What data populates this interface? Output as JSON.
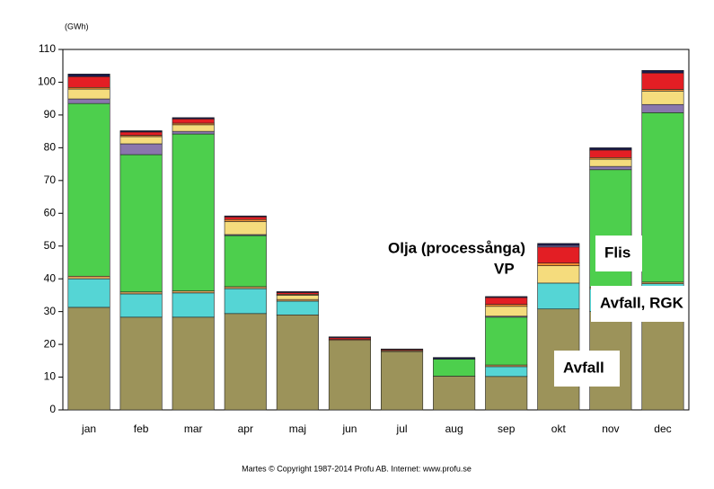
{
  "chart_data": {
    "type": "stacked_bar",
    "y_label": "(GWh)",
    "footer": "Martes © Copyright 1987-2014 Profu AB. Internet: www.profu.se",
    "categories": [
      "jan",
      "feb",
      "mar",
      "apr",
      "maj",
      "jun",
      "jul",
      "aug",
      "sep",
      "okt",
      "nov",
      "dec"
    ],
    "ylim": [
      0,
      110
    ],
    "yticks": [
      0,
      10,
      20,
      30,
      40,
      50,
      60,
      70,
      80,
      90,
      100,
      110
    ],
    "grid": false,
    "series": [
      {
        "color": "#9c935a",
        "values": [
          31.3,
          28.3,
          28.3,
          29.4,
          29,
          21.2,
          17.8,
          10.3,
          10.2,
          30.8,
          30,
          37
        ]
      },
      {
        "color": "#55d5d5",
        "values": [
          8.7,
          7.1,
          7.4,
          7.6,
          4.2,
          0,
          0,
          0,
          3,
          7.9,
          7,
          1.5
        ]
      },
      {
        "color": "#d9a05a",
        "values": [
          0.8,
          0.6,
          0.6,
          0.6,
          0.5,
          0.3,
          0.3,
          0,
          0.5,
          0,
          0.5,
          0.5
        ]
      },
      {
        "color": "#4dcf4d",
        "values": [
          52.7,
          41.9,
          47.9,
          15.6,
          0,
          0,
          0,
          5.2,
          14.6,
          0,
          35.8,
          51.7
        ]
      },
      {
        "color": "#8a76ad",
        "values": [
          1.4,
          3.3,
          0.8,
          0.3,
          0,
          0,
          0,
          0,
          0.3,
          0,
          1,
          2.5
        ]
      },
      {
        "color": "#f5dc7d",
        "values": [
          3,
          2.2,
          2,
          4,
          1.3,
          0,
          0,
          0,
          3,
          5.3,
          2.2,
          4.1
        ]
      },
      {
        "color": "#f08a30",
        "values": [
          0.5,
          0.4,
          0.5,
          0.6,
          0.3,
          0,
          0,
          0,
          0.6,
          0.8,
          0.5,
          0.5
        ]
      },
      {
        "color": "#e31e24",
        "values": [
          3.3,
          1,
          1.3,
          0.8,
          0.5,
          0.5,
          0.3,
          0,
          2.1,
          4.9,
          2.3,
          5
        ]
      },
      {
        "color": "#7a6ab0",
        "values": [
          0,
          0,
          0,
          0,
          0,
          0,
          0,
          0,
          0,
          0.5,
          0,
          0
        ]
      },
      {
        "color": "#1a1a4a",
        "values": [
          0.8,
          0.4,
          0.4,
          0.3,
          0.3,
          0.3,
          0.2,
          0.5,
          0.3,
          0.6,
          0.7,
          0.8
        ]
      }
    ],
    "annotations": [
      "Olja (processånga)",
      "VP",
      "Flis",
      "Avfall, RGK",
      "Avfall"
    ]
  }
}
